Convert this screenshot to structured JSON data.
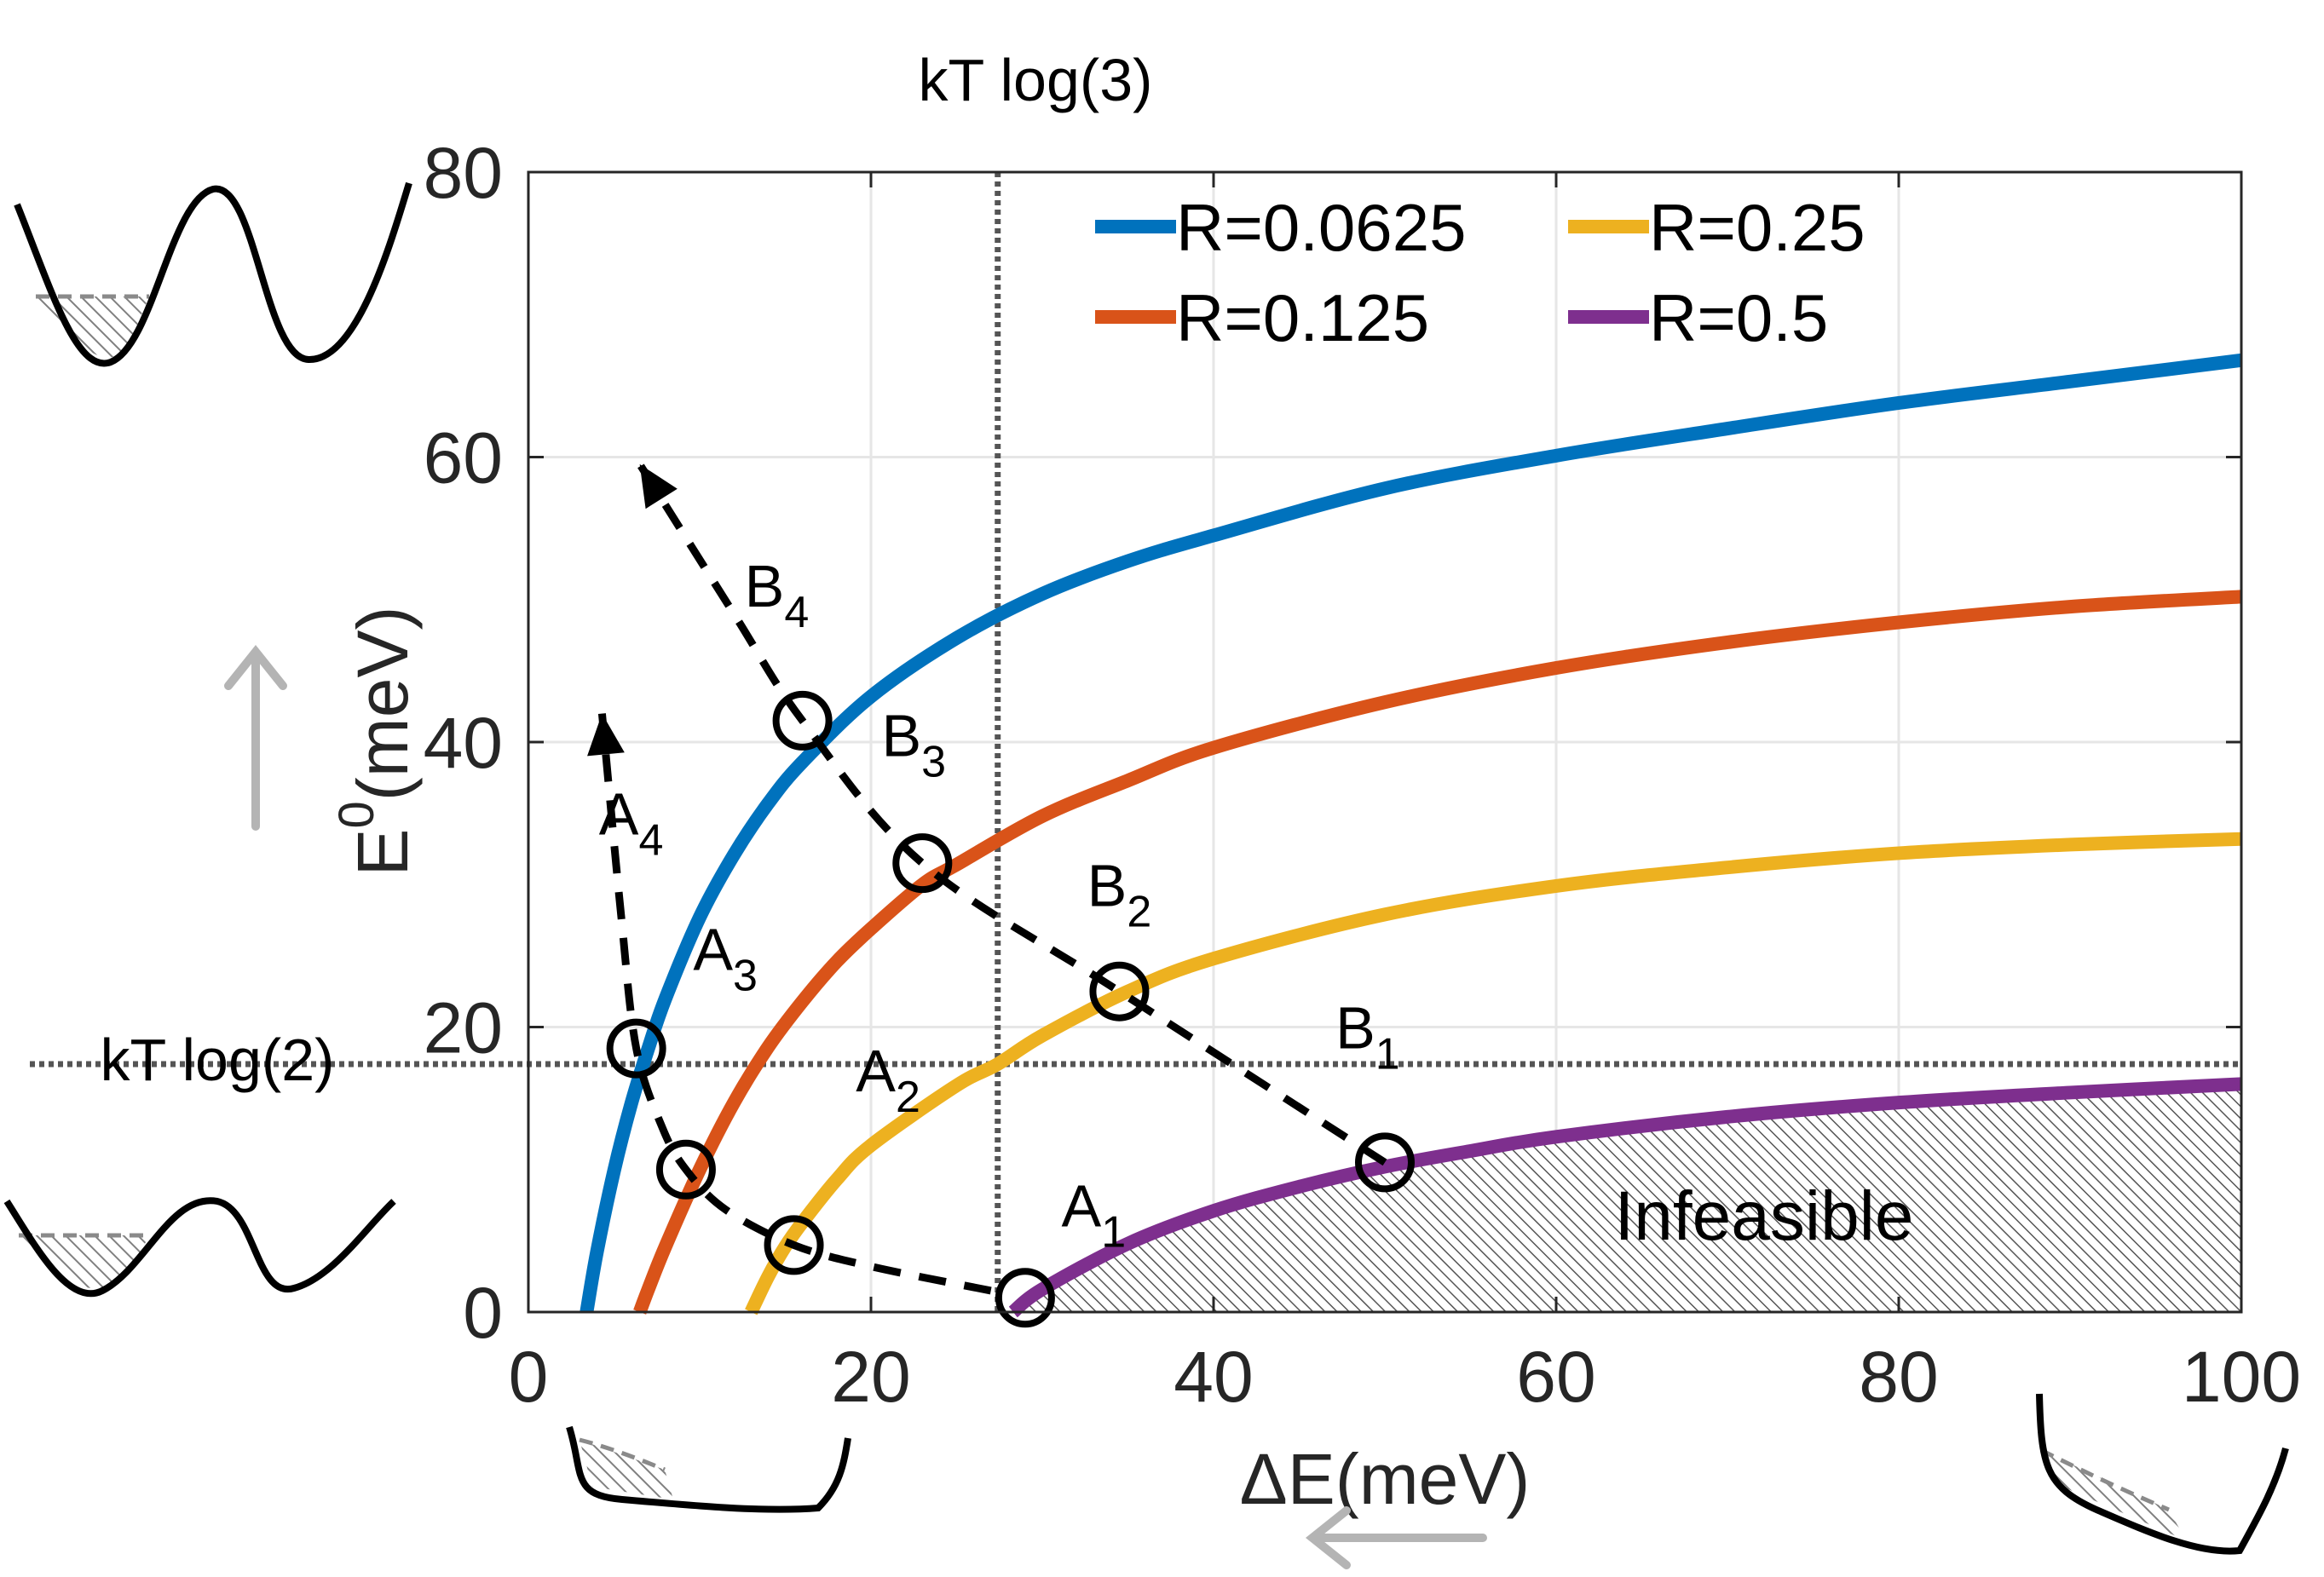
{
  "chart_data": {
    "type": "line",
    "title": "",
    "xlabel": "ΔE(meV)",
    "ylabel": "E⁰(meV)",
    "ylabel_main": "E",
    "ylabel_sup": "0",
    "ylabel_unit": "(meV)",
    "xlim": [
      0,
      100
    ],
    "ylim": [
      0,
      80
    ],
    "xticks": [
      0,
      20,
      40,
      60,
      80,
      100
    ],
    "yticks": [
      0,
      20,
      40,
      60,
      80
    ],
    "grid": true,
    "legend_position": "top-right",
    "series": [
      {
        "name": "R=0.0625",
        "color": "#0072bd",
        "x": [
          3.4,
          4,
          5,
          6,
          7,
          8,
          10,
          12,
          14,
          16,
          20,
          25,
          30,
          35,
          40,
          50,
          60,
          70,
          80,
          90,
          100
        ],
        "y": [
          0,
          4.2,
          9.9,
          14.6,
          18.5,
          22.0,
          27.7,
          32.1,
          35.7,
          38.6,
          43.2,
          47.3,
          50.4,
          52.7,
          54.5,
          57.8,
          60.1,
          62.0,
          63.8,
          65.3,
          66.8
        ]
      },
      {
        "name": "R=0.125",
        "color": "#d95319",
        "x": [
          6.5,
          7,
          8,
          10,
          12,
          14,
          16,
          18,
          20,
          23,
          25,
          30,
          35,
          40,
          50,
          60,
          70,
          80,
          90,
          100
        ],
        "y": [
          0,
          1.6,
          4.6,
          10.0,
          14.7,
          18.6,
          21.8,
          24.6,
          26.9,
          30.0,
          31.4,
          34.8,
          37.3,
          39.6,
          42.8,
          45.2,
          47.0,
          48.4,
          49.5,
          50.2
        ]
      },
      {
        "name": "R=0.25",
        "color": "#edb120",
        "x": [
          13,
          14,
          15,
          16,
          18,
          20,
          25,
          27.4,
          30,
          35,
          40,
          50,
          60,
          70,
          80,
          90,
          100
        ],
        "y": [
          0,
          2.5,
          4.6,
          6.3,
          9.3,
          11.7,
          15.9,
          17.4,
          19.4,
          22.5,
          24.8,
          27.9,
          29.9,
          31.2,
          32.2,
          32.8,
          33.2
        ]
      },
      {
        "name": "R=0.5",
        "color": "#7e2f8e",
        "x": [
          28.3,
          30,
          35,
          40,
          45,
          50,
          55,
          60,
          70,
          80,
          90,
          100
        ],
        "y": [
          0,
          1.6,
          4.8,
          7.1,
          8.8,
          10.2,
          11.3,
          12.3,
          13.7,
          14.7,
          15.4,
          16.0
        ]
      }
    ],
    "path_A": {
      "labels": [
        {
          "main": "A",
          "sub": "1",
          "x": 33,
          "y": 6
        },
        {
          "main": "A",
          "sub": "2",
          "x": 21,
          "y": 15.5
        },
        {
          "main": "A",
          "sub": "3",
          "x": 11.5,
          "y": 24
        },
        {
          "main": "A",
          "sub": "4",
          "x": 6,
          "y": 33.5
        }
      ],
      "points": [
        [
          29,
          1
        ],
        [
          15.5,
          4.7
        ],
        [
          9.2,
          10
        ],
        [
          6.3,
          18.5
        ]
      ],
      "line": [
        [
          27,
          1.5
        ],
        [
          20,
          3.2
        ],
        [
          15.5,
          4.7
        ],
        [
          11.5,
          7.2
        ],
        [
          9.2,
          10
        ],
        [
          7.8,
          13
        ],
        [
          6.3,
          18.5
        ],
        [
          5.4,
          28
        ],
        [
          4.3,
          42
        ]
      ]
    },
    "path_B": {
      "labels": [
        {
          "main": "B",
          "sub": "1",
          "x": 49,
          "y": 18.5
        },
        {
          "main": "B",
          "sub": "2",
          "x": 34.5,
          "y": 28.5
        },
        {
          "main": "B",
          "sub": "3",
          "x": 22.5,
          "y": 39
        },
        {
          "main": "B",
          "sub": "4",
          "x": 14.5,
          "y": 49.5
        }
      ],
      "points": [
        [
          50,
          10.5
        ],
        [
          34.5,
          22.5
        ],
        [
          23,
          31.5
        ],
        [
          16,
          41.5
        ]
      ],
      "line": [
        [
          50,
          10.5
        ],
        [
          34.5,
          22.5
        ],
        [
          23,
          31.5
        ],
        [
          16,
          41.5
        ],
        [
          12,
          49
        ],
        [
          6.5,
          59.5
        ]
      ]
    },
    "threshold_lines": [
      {
        "orientation": "vertical",
        "value": 27.4,
        "label": "kT log(3)"
      },
      {
        "orientation": "horizontal",
        "value": 17.4,
        "label": "kT log(2)"
      }
    ],
    "infeasible_label": "Infeasible",
    "gray_fill_color": "#b0b0b0",
    "arrow_color": "#b4b4b4"
  }
}
